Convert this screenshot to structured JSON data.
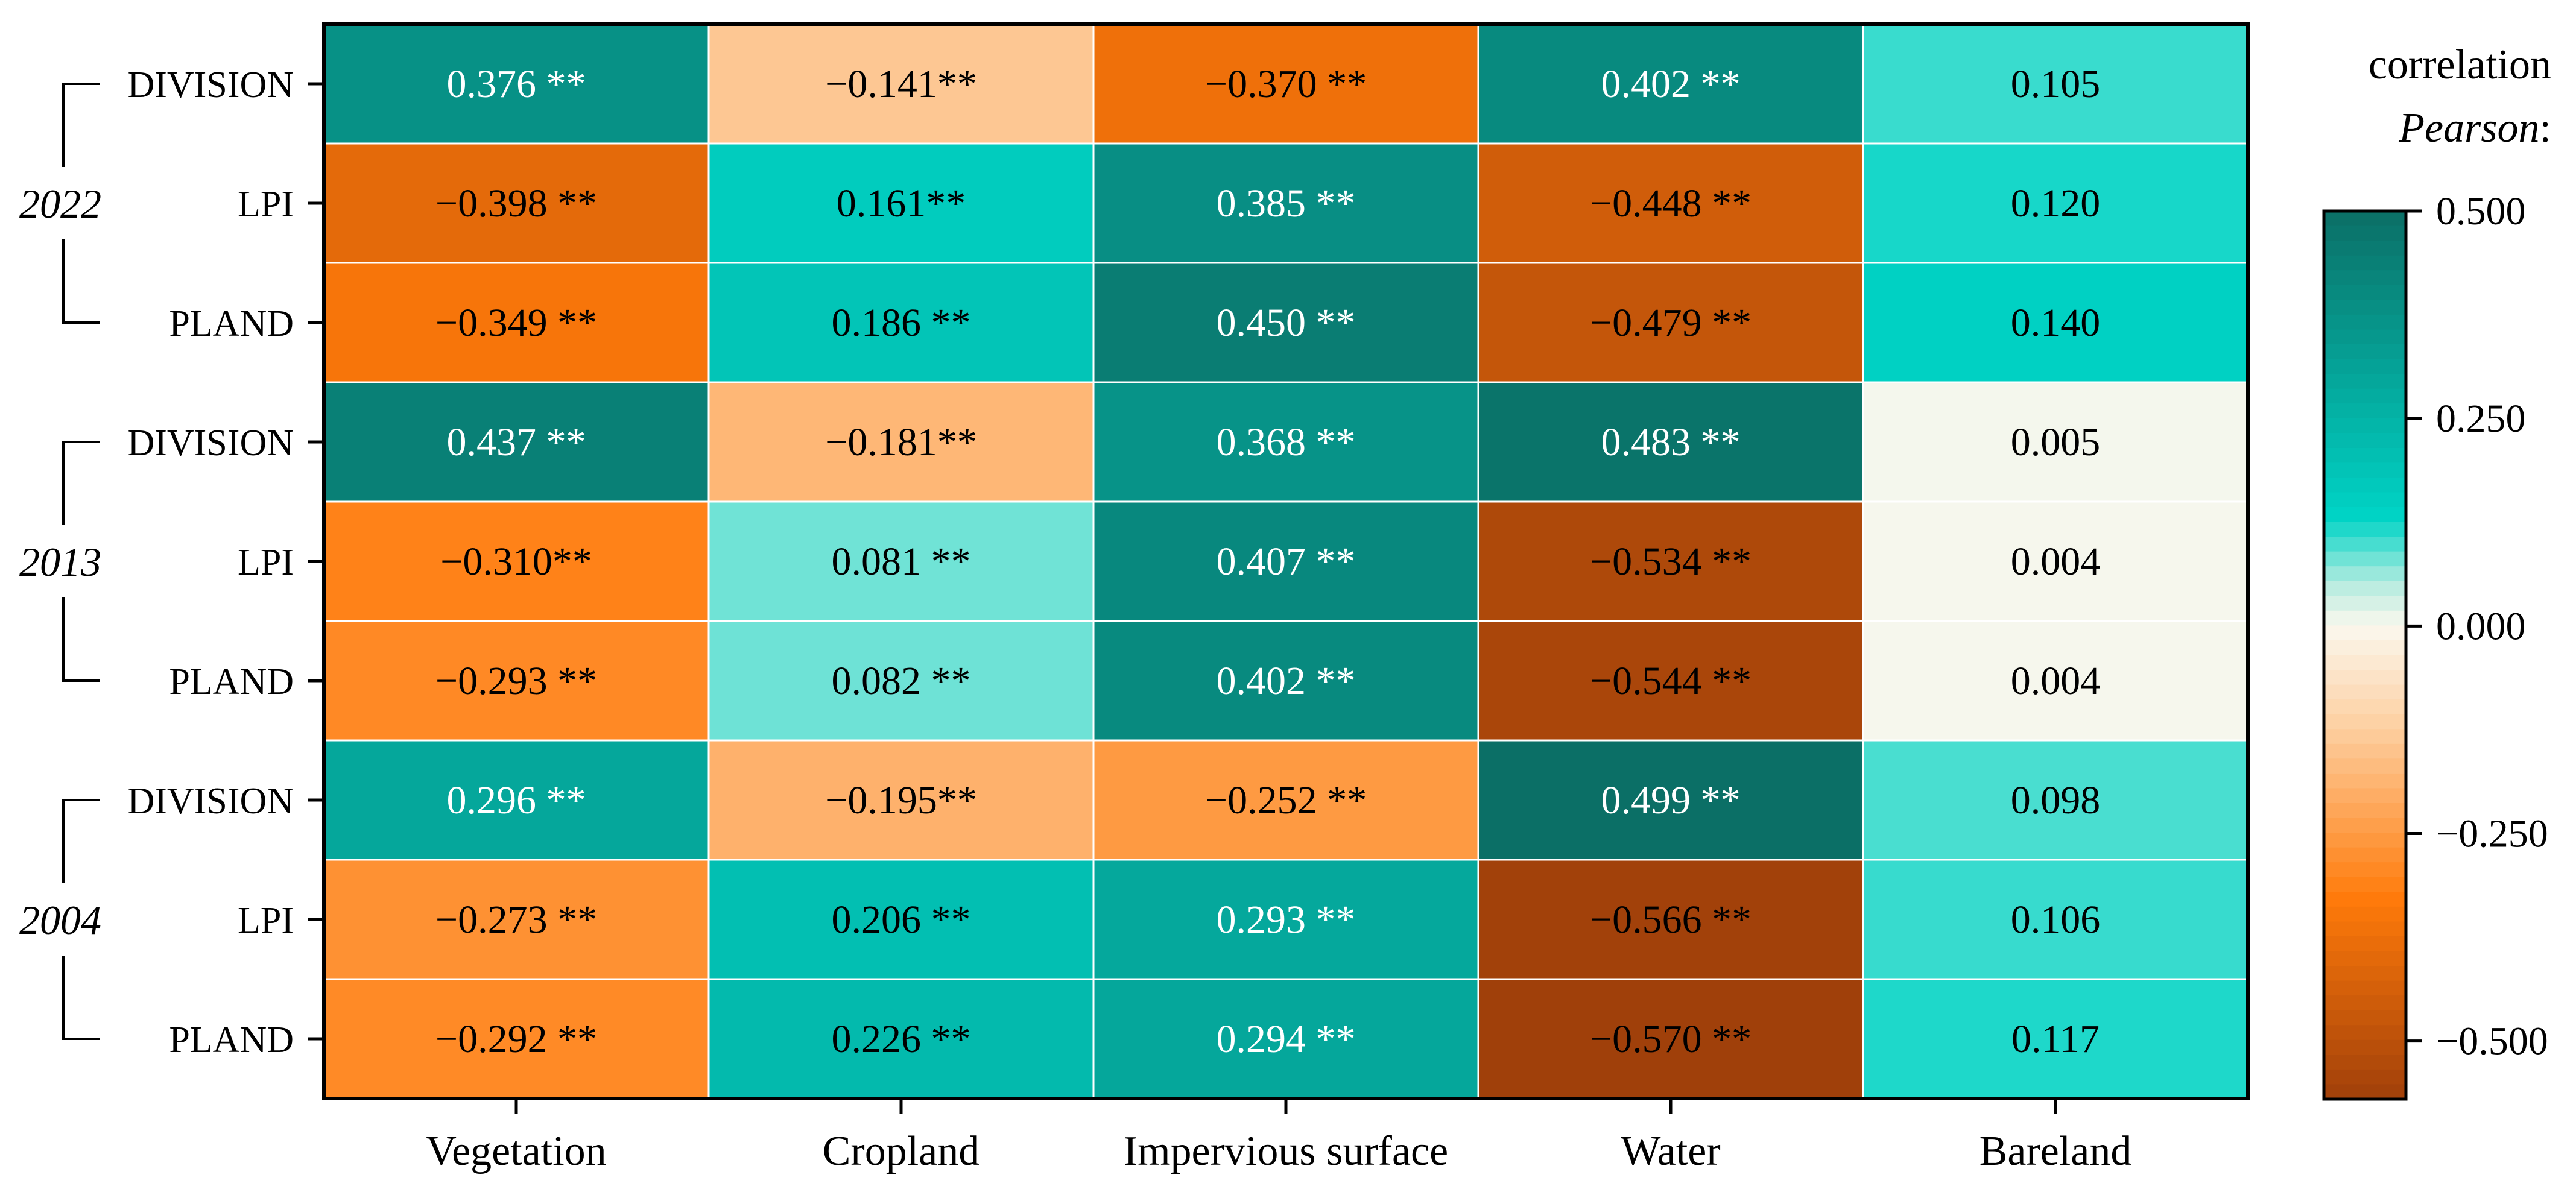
{
  "chart_data": {
    "type": "heatmap",
    "title": "",
    "columns": [
      "Vegetation",
      "Cropland",
      "Impervious surface",
      "Water",
      "Bareland"
    ],
    "groups": [
      {
        "year": "2022",
        "rows": [
          {
            "metric": "DIVISION",
            "values": [
              0.376,
              -0.141,
              -0.37,
              0.402,
              0.105
            ],
            "labels": [
              "0.376 **",
              "−0.141**",
              "−0.370 **",
              "0.402 **",
              "0.105"
            ]
          },
          {
            "metric": "LPI",
            "values": [
              -0.398,
              0.161,
              0.385,
              -0.448,
              0.12
            ],
            "labels": [
              "−0.398 **",
              "0.161**",
              "0.385 **",
              "−0.448 **",
              "0.120"
            ]
          },
          {
            "metric": "PLAND",
            "values": [
              -0.349,
              0.186,
              0.45,
              -0.479,
              0.14
            ],
            "labels": [
              "−0.349 **",
              "0.186 **",
              "0.450 **",
              "−0.479 **",
              "0.140"
            ]
          }
        ]
      },
      {
        "year": "2013",
        "rows": [
          {
            "metric": "DIVISION",
            "values": [
              0.437,
              -0.181,
              0.368,
              0.483,
              0.005
            ],
            "labels": [
              "0.437 **",
              "−0.181**",
              "0.368 **",
              "0.483 **",
              "0.005"
            ]
          },
          {
            "metric": "LPI",
            "values": [
              -0.31,
              0.081,
              0.407,
              -0.534,
              0.004
            ],
            "labels": [
              "−0.310**",
              "0.081 **",
              "0.407 **",
              "−0.534 **",
              "0.004"
            ]
          },
          {
            "metric": "PLAND",
            "values": [
              -0.293,
              0.082,
              0.402,
              -0.544,
              0.004
            ],
            "labels": [
              "−0.293 **",
              "0.082 **",
              "0.402 **",
              "−0.544 **",
              "0.004"
            ]
          }
        ]
      },
      {
        "year": "2004",
        "rows": [
          {
            "metric": "DIVISION",
            "values": [
              0.296,
              -0.195,
              -0.252,
              0.499,
              0.098
            ],
            "labels": [
              "0.296 **",
              "−0.195**",
              "−0.252 **",
              "0.499 **",
              "0.098"
            ]
          },
          {
            "metric": "LPI",
            "values": [
              -0.273,
              0.206,
              0.293,
              -0.566,
              0.106
            ],
            "labels": [
              "−0.273 **",
              "0.206 **",
              "0.293 **",
              "−0.566 **",
              "0.106"
            ]
          },
          {
            "metric": "PLAND",
            "values": [
              -0.292,
              0.226,
              0.294,
              -0.57,
              0.117
            ],
            "labels": [
              "−0.292 **",
              "0.226 **",
              "0.294 **",
              "−0.570 **",
              "0.117"
            ]
          }
        ]
      }
    ],
    "colorbar": {
      "title_line1": "correlation",
      "title_line2": "Pearson",
      "title_suffix": ":",
      "range": [
        -0.57,
        0.5
      ],
      "ticks": [
        0.5,
        0.25,
        0.0,
        -0.25,
        -0.5
      ],
      "tick_labels": [
        "0.500",
        "0.250",
        "0.000",
        "−0.250",
        "−0.500"
      ],
      "colors": {
        "min": "#a0400a",
        "negative_mid": "#ff7a0a",
        "negative_light": "#fdd0a2",
        "zero": "#fbf8ee",
        "positive_light": "#b7ece0",
        "positive_mid": "#00d4c6",
        "max": "#0b6f66"
      }
    },
    "grid": true
  }
}
